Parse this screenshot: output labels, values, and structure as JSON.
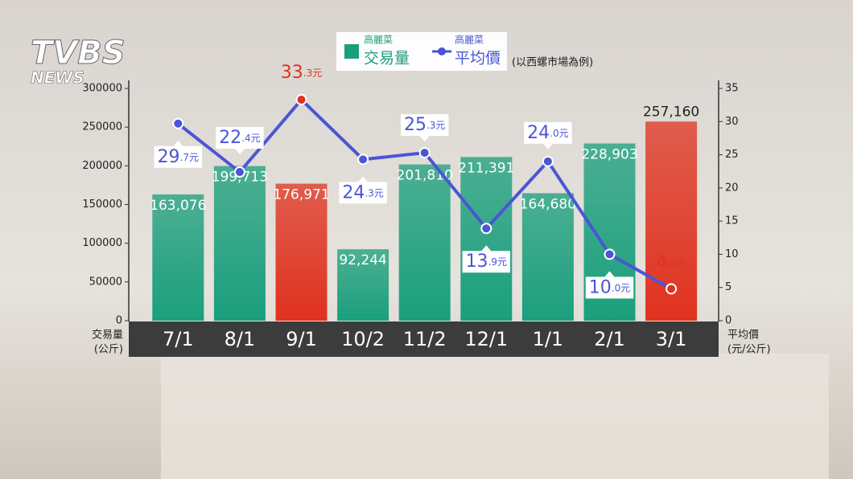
{
  "logo": {
    "main": "TVBS",
    "sub": "NEWS"
  },
  "chart_data": {
    "type": "bar-line",
    "note": "(以西螺市場為例)",
    "categories": [
      "7/1",
      "8/1",
      "9/1",
      "10/2",
      "11/2",
      "12/1",
      "1/1",
      "2/1",
      "3/1"
    ],
    "series": [
      {
        "group": "高麗菜",
        "name": "交易量",
        "type": "bar",
        "color": "#1a9f7c",
        "colors": [
          "#1a9f7c",
          "#1a9f7c",
          "#e0321f",
          "#1a9f7c",
          "#1a9f7c",
          "#1a9f7c",
          "#1a9f7c",
          "#1a9f7c",
          "#e0321f"
        ],
        "values": [
          163076,
          199713,
          176971,
          92244,
          201810,
          211391,
          164680,
          228903,
          257160
        ],
        "value_labels": [
          "163,076",
          "199,713",
          "176,971",
          "92,244",
          "201,810",
          "211,391",
          "164,680",
          "228,903",
          "257,160"
        ]
      },
      {
        "group": "高麗菜",
        "name": "平均價",
        "type": "line",
        "axis": "y2",
        "color": "#4a56d4",
        "colors": [
          "#4a56d4",
          "#4a56d4",
          "#e0321f",
          "#4a56d4",
          "#4a56d4",
          "#4a56d4",
          "#4a56d4",
          "#4a56d4",
          "#e0321f"
        ],
        "values": [
          29.7,
          22.4,
          33.3,
          24.3,
          25.3,
          13.9,
          24.0,
          10.0,
          4.8
        ],
        "value_labels": [
          "29.7元",
          "22.4元",
          "33.3元",
          "24.3元",
          "25.3元",
          "13.9元",
          "24.0元",
          "10.0元",
          "4.8元"
        ]
      }
    ],
    "ylabel": [
      "交易量",
      "(公斤)"
    ],
    "y2label": [
      "平均價",
      "(元/公斤)"
    ],
    "ylim": [
      0,
      300000
    ],
    "yticks": [
      0,
      50000,
      100000,
      150000,
      200000,
      250000,
      300000
    ],
    "y2lim": [
      0,
      35
    ],
    "y2ticks": [
      0,
      5,
      10,
      15,
      20,
      25,
      30,
      35
    ]
  }
}
